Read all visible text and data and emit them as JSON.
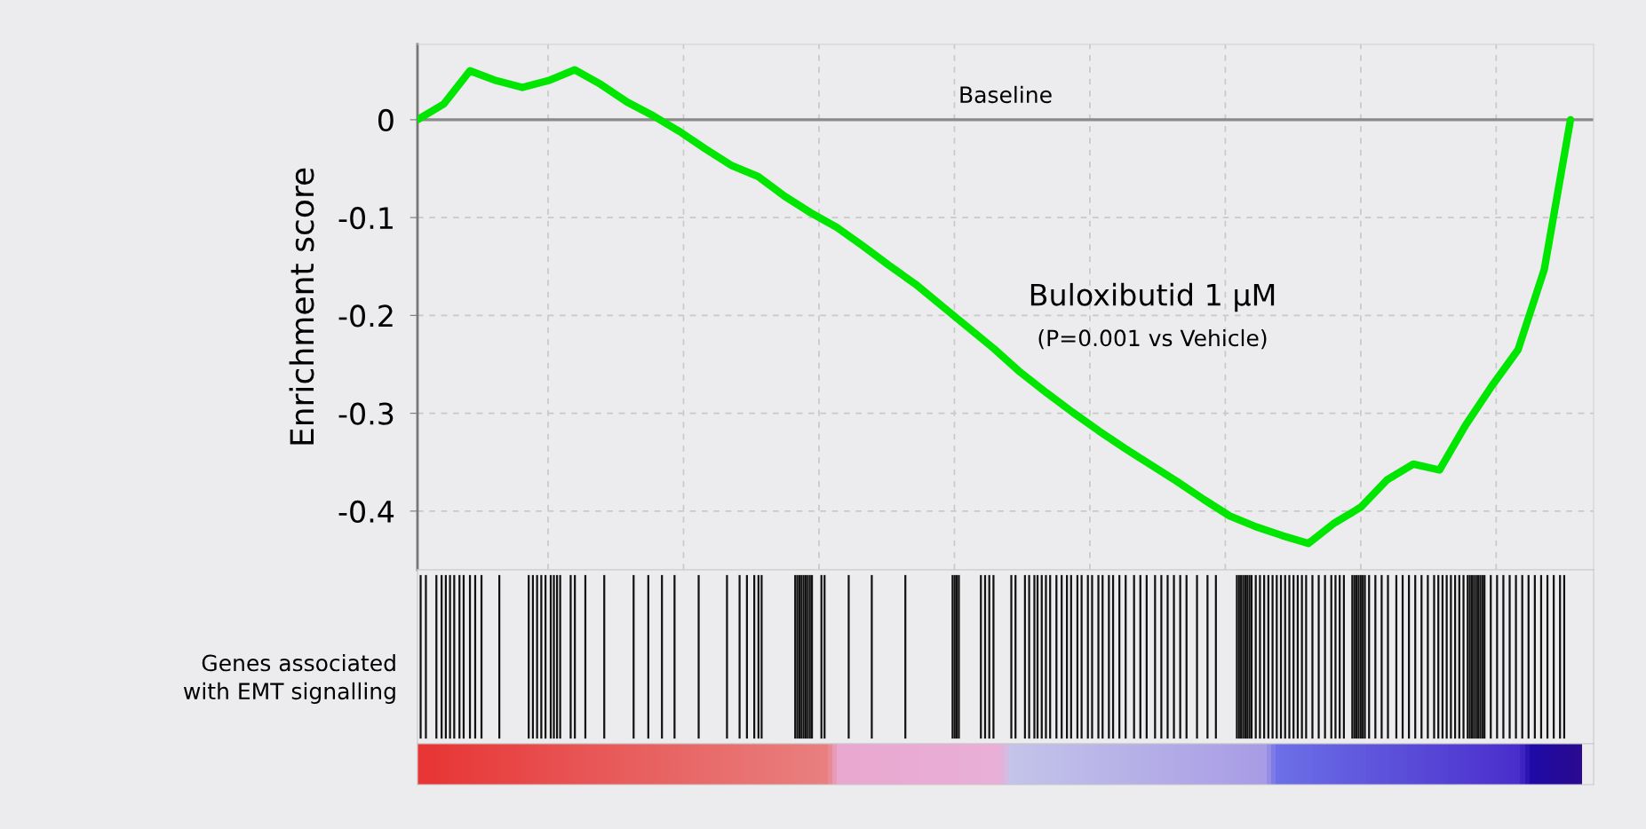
{
  "chart_data": {
    "type": "line",
    "ylabel": "Enrichment score",
    "categories": [
      null,
      null,
      null,
      null,
      null,
      null,
      null,
      null,
      null,
      null,
      null,
      null,
      null,
      null,
      null,
      null,
      null,
      null,
      null,
      null,
      null,
      null,
      null,
      null,
      null,
      null,
      null,
      null,
      null,
      null,
      null,
      null,
      null,
      null,
      null,
      null,
      null,
      null,
      null,
      null,
      null,
      null,
      null,
      null,
      null
    ],
    "series": [
      {
        "name": "Buloxibutid 1 µM",
        "color": "#00e600",
        "values": [
          0.0,
          0.016,
          0.05,
          0.04,
          0.033,
          0.04,
          0.051,
          0.036,
          0.018,
          0.004,
          -0.012,
          -0.03,
          -0.047,
          -0.058,
          -0.078,
          -0.095,
          -0.11,
          -0.129,
          -0.149,
          -0.168,
          -0.19,
          -0.212,
          -0.234,
          -0.258,
          -0.279,
          -0.299,
          -0.318,
          -0.336,
          -0.353,
          -0.37,
          -0.388,
          -0.405,
          -0.416,
          -0.425,
          -0.433,
          -0.412,
          -0.396,
          -0.368,
          -0.352,
          -0.358,
          -0.312,
          -0.272,
          -0.235,
          -0.153,
          0.0
        ]
      }
    ],
    "ylim": [
      -0.46,
      0.077
    ],
    "yticks": [
      0,
      {
        "value": -0.1,
        "label": "-0.1"
      },
      {
        "value": -0.2,
        "label": "-0.2"
      },
      {
        "value": -0.3,
        "label": "-0.3"
      },
      {
        "value": -0.4,
        "label": "-0.4"
      }
    ],
    "tick_labels": "y",
    "grid": true,
    "marker": "none",
    "line_style": "solid",
    "legend": false,
    "ref_lines": [
      {
        "axis": "y",
        "value": 0,
        "label": "Baseline",
        "color": "#8a8a8a"
      }
    ],
    "annotations": [
      "(P=0.001 vs Vehicle)",
      "Genes associated\nwith EMT signalling"
    ]
  }
}
